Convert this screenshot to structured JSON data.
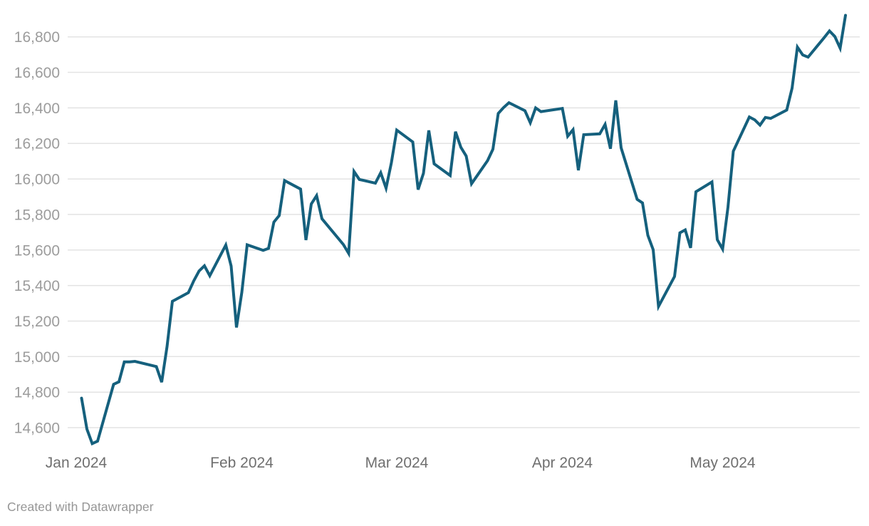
{
  "chart": {
    "footer": "Created with Datawrapper",
    "colors": {
      "line": "#15607d",
      "grid": "#e3e3e3",
      "y_label": "#9c9c9c",
      "x_label": "#6f6f6f",
      "footer_text": "#969696",
      "background": "#ffffff"
    }
  },
  "chart_data": {
    "type": "line",
    "title": "",
    "grid": "horizontal",
    "legend": "none",
    "ylim": [
      14430,
      17010
    ],
    "xlim": [
      "2024-01-01",
      "2024-05-27"
    ],
    "y_ticks": [
      {
        "value": 14600,
        "label": "14,600"
      },
      {
        "value": 14800,
        "label": "14,800"
      },
      {
        "value": 15000,
        "label": "15,000"
      },
      {
        "value": 15200,
        "label": "15,200"
      },
      {
        "value": 15400,
        "label": "15,400"
      },
      {
        "value": 15600,
        "label": "15,600"
      },
      {
        "value": 15800,
        "label": "15,800"
      },
      {
        "value": 16000,
        "label": "16,000"
      },
      {
        "value": 16200,
        "label": "16,200"
      },
      {
        "value": 16400,
        "label": "16,400"
      },
      {
        "value": 16600,
        "label": "16,600"
      },
      {
        "value": 16800,
        "label": "16,800"
      }
    ],
    "x_ticks": [
      {
        "date": "2024-01-01",
        "label": "Jan 2024"
      },
      {
        "date": "2024-02-01",
        "label": "Feb 2024"
      },
      {
        "date": "2024-03-01",
        "label": "Mar 2024"
      },
      {
        "date": "2024-04-01",
        "label": "Apr 2024"
      },
      {
        "date": "2024-05-01",
        "label": "May 2024"
      }
    ],
    "x": [
      "2024-01-02",
      "2024-01-03",
      "2024-01-04",
      "2024-01-05",
      "2024-01-08",
      "2024-01-09",
      "2024-01-10",
      "2024-01-11",
      "2024-01-12",
      "2024-01-16",
      "2024-01-17",
      "2024-01-18",
      "2024-01-19",
      "2024-01-22",
      "2024-01-23",
      "2024-01-24",
      "2024-01-25",
      "2024-01-26",
      "2024-01-29",
      "2024-01-30",
      "2024-01-31",
      "2024-02-01",
      "2024-02-02",
      "2024-02-05",
      "2024-02-06",
      "2024-02-07",
      "2024-02-08",
      "2024-02-09",
      "2024-02-12",
      "2024-02-13",
      "2024-02-14",
      "2024-02-15",
      "2024-02-16",
      "2024-02-20",
      "2024-02-21",
      "2024-02-22",
      "2024-02-23",
      "2024-02-26",
      "2024-02-27",
      "2024-02-28",
      "2024-02-29",
      "2024-03-01",
      "2024-03-04",
      "2024-03-05",
      "2024-03-06",
      "2024-03-07",
      "2024-03-08",
      "2024-03-11",
      "2024-03-12",
      "2024-03-13",
      "2024-03-14",
      "2024-03-15",
      "2024-03-18",
      "2024-03-19",
      "2024-03-20",
      "2024-03-21",
      "2024-03-22",
      "2024-03-25",
      "2024-03-26",
      "2024-03-27",
      "2024-03-28",
      "2024-04-01",
      "2024-04-02",
      "2024-04-03",
      "2024-04-04",
      "2024-04-05",
      "2024-04-08",
      "2024-04-09",
      "2024-04-10",
      "2024-04-11",
      "2024-04-12",
      "2024-04-15",
      "2024-04-16",
      "2024-04-17",
      "2024-04-18",
      "2024-04-19",
      "2024-04-22",
      "2024-04-23",
      "2024-04-24",
      "2024-04-25",
      "2024-04-26",
      "2024-04-29",
      "2024-04-30",
      "2024-05-01",
      "2024-05-02",
      "2024-05-03",
      "2024-05-06",
      "2024-05-07",
      "2024-05-08",
      "2024-05-09",
      "2024-05-10",
      "2024-05-13",
      "2024-05-14",
      "2024-05-15",
      "2024-05-16",
      "2024-05-17",
      "2024-05-20",
      "2024-05-21",
      "2024-05-22",
      "2024-05-23",
      "2024-05-24"
    ],
    "values": [
      14766,
      14592,
      14510,
      14524,
      14844,
      14858,
      14970,
      14970,
      14973,
      14944,
      14856,
      15056,
      15311,
      15360,
      15426,
      15482,
      15511,
      15455,
      15628,
      15510,
      15164,
      15362,
      15629,
      15598,
      15609,
      15757,
      15794,
      15991,
      15943,
      15656,
      15859,
      15906,
      15776,
      15631,
      15581,
      16042,
      15997,
      15976,
      16035,
      15948,
      16092,
      16275,
      16208,
      15940,
      16032,
      16273,
      16085,
      16019,
      16266,
      16178,
      16129,
      15973,
      16103,
      16167,
      16369,
      16402,
      16429,
      16384,
      16316,
      16400,
      16379,
      16397,
      16240,
      16277,
      16049,
      16249,
      16254,
      16307,
      16170,
      16442,
      16175,
      15885,
      15865,
      15683,
      15602,
      15282,
      15451,
      15697,
      15713,
      15612,
      15928,
      15983,
      15658,
      15605,
      15841,
      16156,
      16349,
      16333,
      16303,
      16346,
      16341,
      16388,
      16511,
      16742,
      16698,
      16686,
      16795,
      16833,
      16802,
      16736,
      16921
    ]
  }
}
